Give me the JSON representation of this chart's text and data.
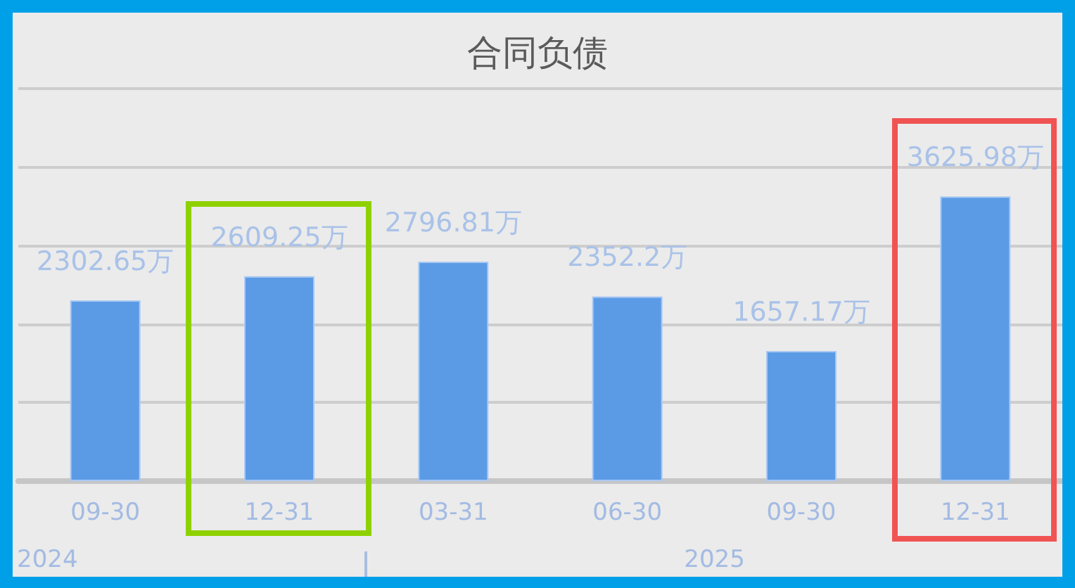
{
  "chart_data": {
    "type": "bar",
    "title": "合同负债",
    "categories": [
      "09-30",
      "12-31",
      "03-31",
      "06-30",
      "09-30",
      "12-31"
    ],
    "values": [
      2302.65,
      2609.25,
      2796.81,
      2352.2,
      1657.17,
      3625.98
    ],
    "value_labels": [
      "2302.65万",
      "2609.25万",
      "2796.81万",
      "2352.2万",
      "1657.17万",
      "3625.98万"
    ],
    "color": "#5b9be6",
    "ylim": [
      0,
      5000
    ],
    "grid": "y",
    "tick_labels": "x",
    "annotations": [
      "2024",
      "2025"
    ]
  }
}
